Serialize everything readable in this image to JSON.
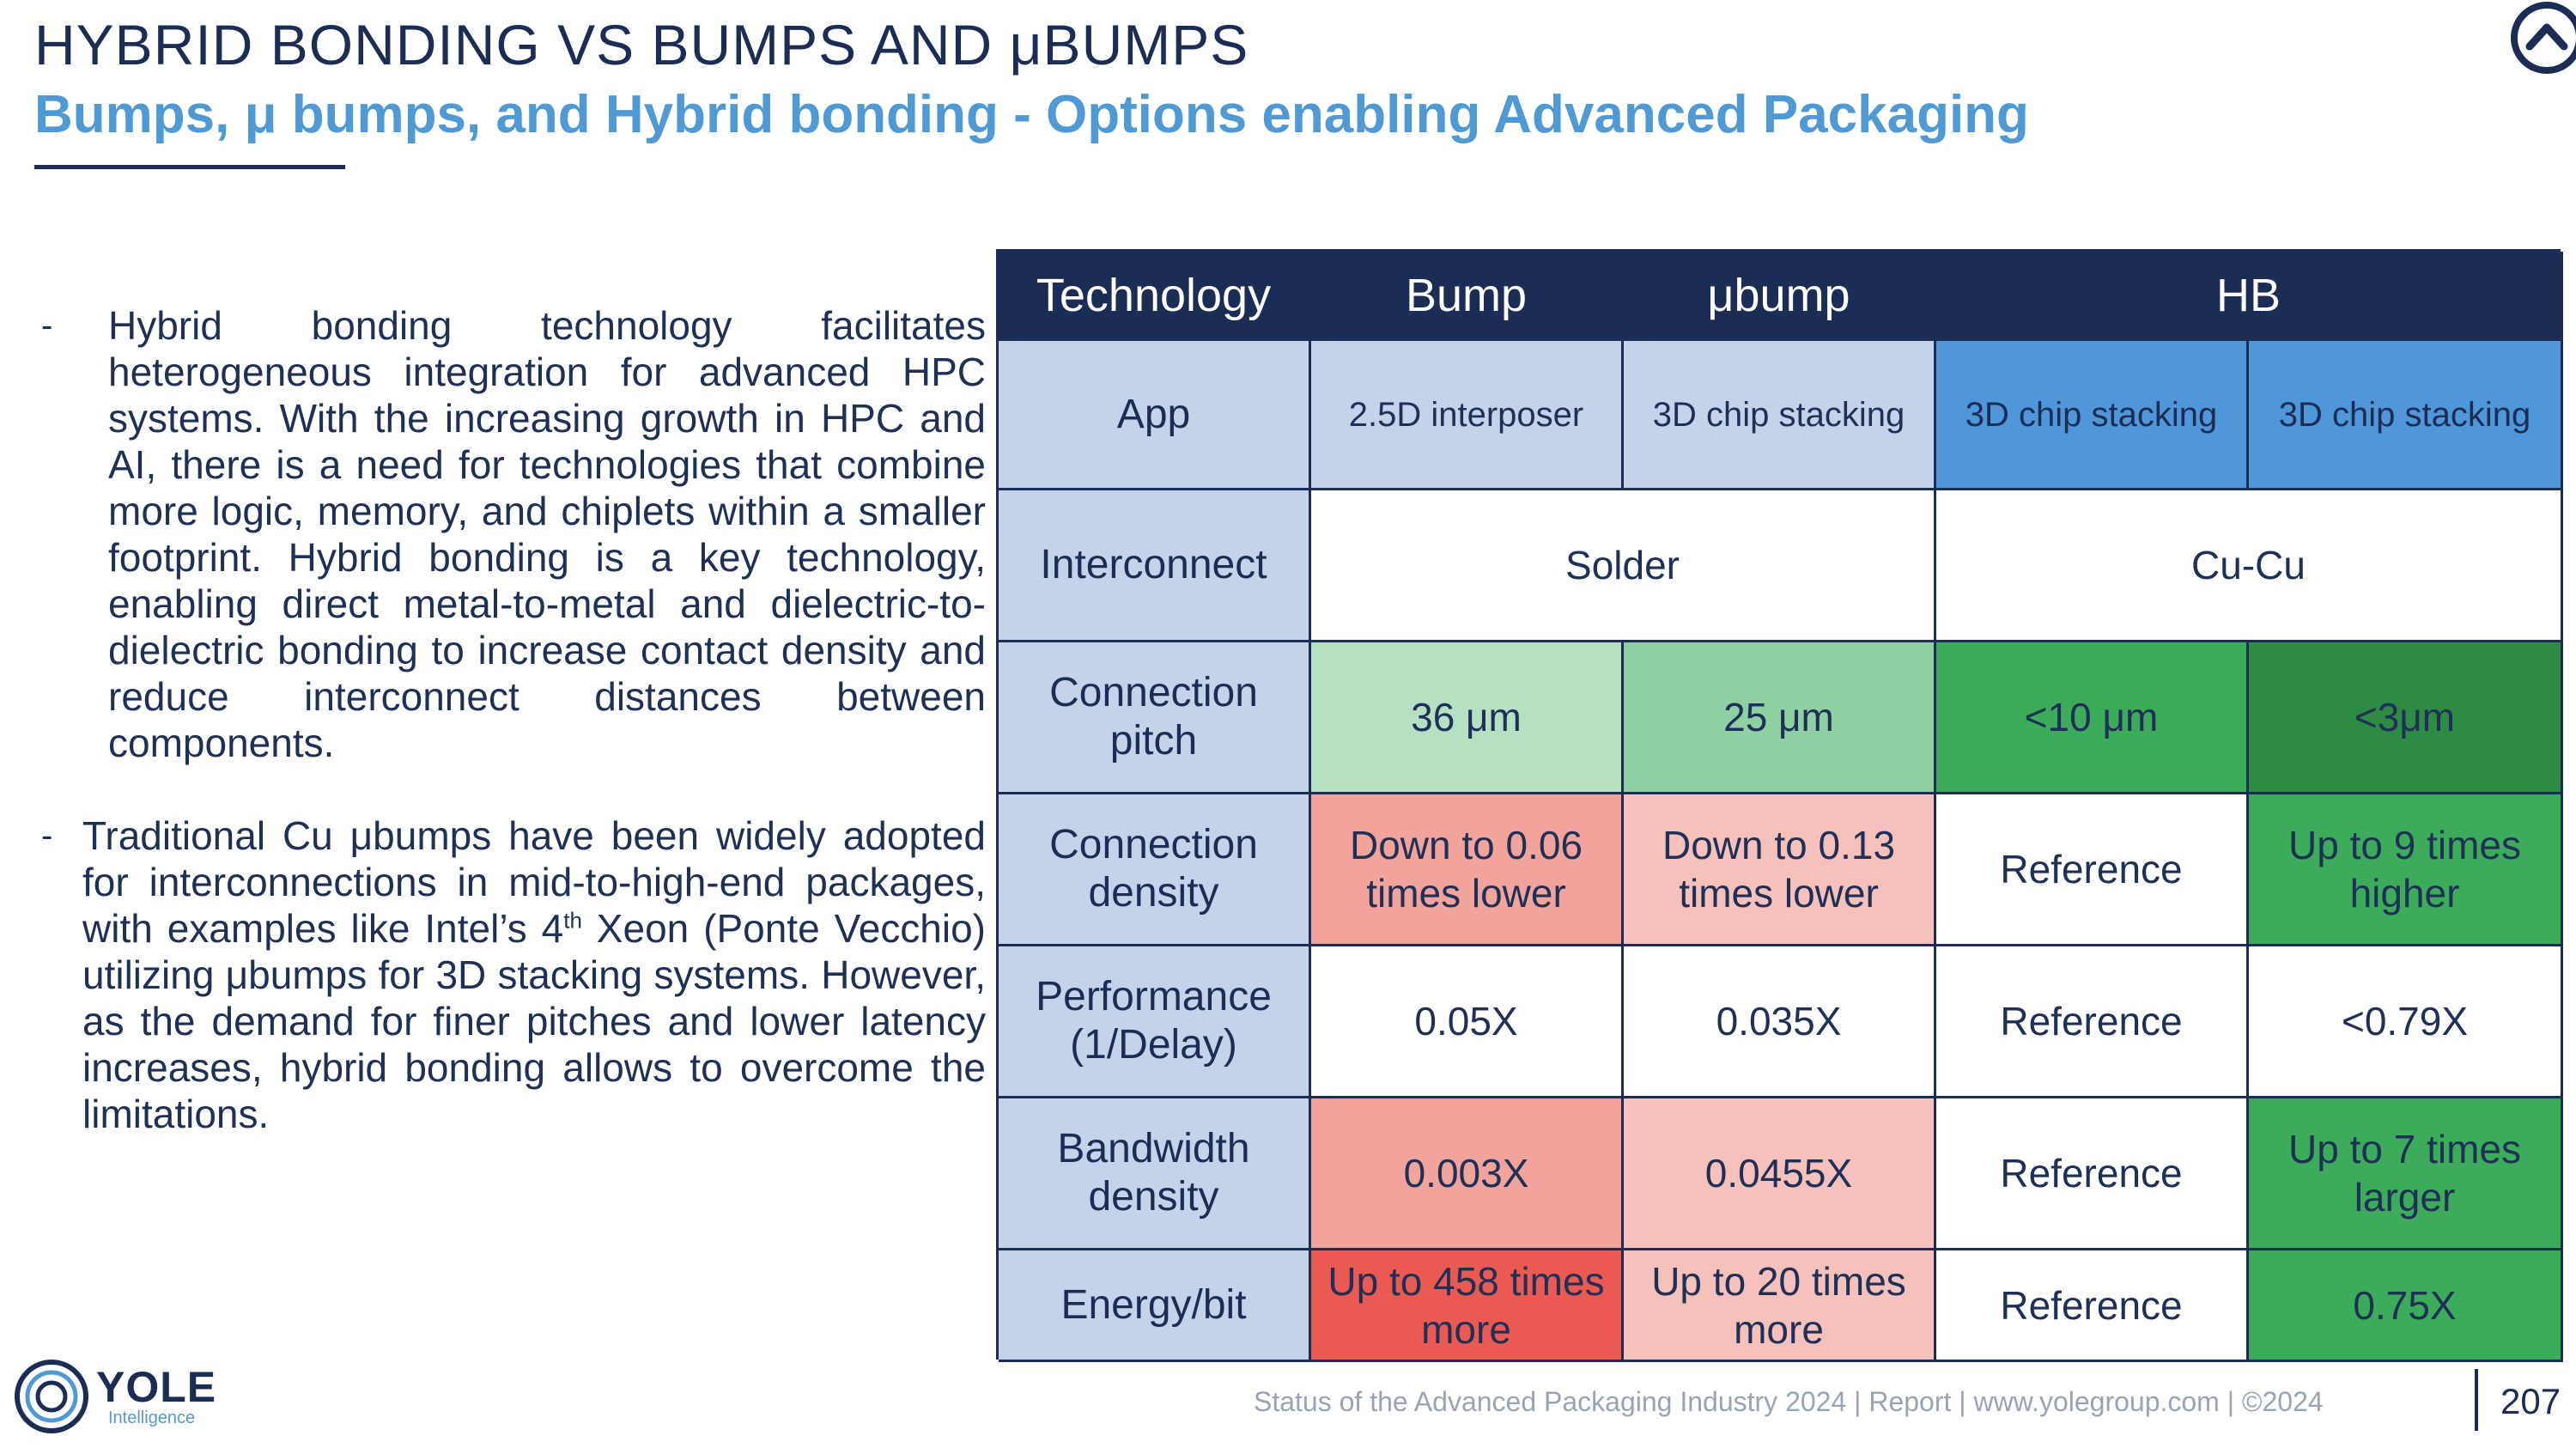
{
  "header": {
    "title": "HYBRID BONDING VS BUMPS AND μBUMPS",
    "subtitle": "Bumps, μ bumps, and Hybrid bonding - Options enabling Advanced Packaging"
  },
  "bullets": {
    "b1": "Hybrid bonding technology facilitates heterogeneous integration for advanced HPC systems. With the increasing growth in HPC and AI, there is a need for technologies that combine more logic, memory, and chiplets within a smaller footprint. Hybrid bonding is a key technology, enabling direct metal-to-metal and dielectric-to-dielectric bonding to increase contact density and reduce interconnect distances between components.",
    "b2_before": "Traditional Cu μbumps have been widely adopted for interconnections in mid-to-high-end packages, with examples like Intel’s 4",
    "b2_sup": "th",
    "b2_after": " Xeon (Ponte Vecchio) utilizing μbumps for 3D stacking systems. However, as the demand for finer pitches and lower latency increases, hybrid bonding allows to overcome the limitations.",
    "dash": "-"
  },
  "table": {
    "headers": {
      "technology": "Technology",
      "bump": "Bump",
      "ubump": "μbump",
      "hb": "HB"
    },
    "app": {
      "label": "App",
      "bump": "2.5D interposer",
      "ubump": "3D chip stacking",
      "hb1": "3D chip stacking",
      "hb2": "3D chip stacking"
    },
    "interconnect": {
      "label": "Interconnect",
      "solder": "Solder",
      "cucu": "Cu-Cu"
    },
    "pitch": {
      "label": "Connection pitch",
      "bump": "36 μm",
      "ubump": "25 μm",
      "hb1": "<10 μm",
      "hb2": "<3μm"
    },
    "density": {
      "label": "Connection density",
      "bump": "Down to 0.06 times lower",
      "ubump": "Down to 0.13 times lower",
      "hb1": "Reference",
      "hb2": "Up to 9 times higher"
    },
    "performance": {
      "label": "Performance (1/Delay)",
      "bump": "0.05X",
      "ubump": "0.035X",
      "hb1": "Reference",
      "hb2": "<0.79X"
    },
    "bandwidth": {
      "label": "Bandwidth density",
      "bump": "0.003X",
      "ubump": "0.0455X",
      "hb1": "Reference",
      "hb2": "Up to 7 times larger"
    },
    "energy": {
      "label": "Energy/bit",
      "bump": "Up to 458 times more",
      "ubump": "Up to 20 times more",
      "hb1": "Reference",
      "hb2": "0.75X"
    }
  },
  "footer": {
    "logo": "YOLE",
    "logo_sub": "Intelligence",
    "text": "Status of the Advanced Packaging Industry 2024 | Report | www.yolegroup.com | ©2024",
    "page": "207"
  },
  "colors": {
    "navy": "#1c2d55",
    "accent_blue": "#4f9ad5",
    "light_blue": "#c5d3ea",
    "green_dark": "#2e8b44",
    "red": "#ea5a52"
  }
}
